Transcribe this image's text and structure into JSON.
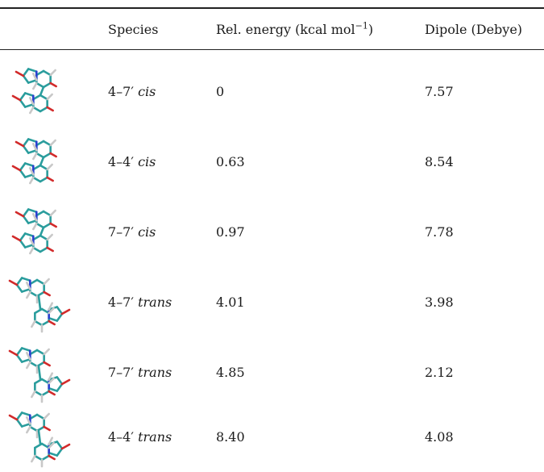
{
  "table": {
    "headers": {
      "species": "Species",
      "energy_prefix": "Rel. energy (kcal mol",
      "energy_exp": "−1",
      "energy_suffix": ")",
      "dipole": "Dipole (Debye)"
    },
    "rows": [
      {
        "species_linkage": "4–7′",
        "species_isomer": "cis",
        "energy": "0",
        "dipole": "7.57",
        "structure_icon": "molecule-4-7-cis"
      },
      {
        "species_linkage": "4–4′",
        "species_isomer": "cis",
        "energy": "0.63",
        "dipole": "8.54",
        "structure_icon": "molecule-4-4-cis"
      },
      {
        "species_linkage": "7–7′",
        "species_isomer": "cis",
        "energy": "0.97",
        "dipole": "7.78",
        "structure_icon": "molecule-7-7-cis"
      },
      {
        "species_linkage": "4–7′",
        "species_isomer": "trans",
        "energy": "4.01",
        "dipole": "3.98",
        "structure_icon": "molecule-4-7-trans"
      },
      {
        "species_linkage": "7–7′",
        "species_isomer": "trans",
        "energy": "4.85",
        "dipole": "2.12",
        "structure_icon": "molecule-7-7-trans"
      },
      {
        "species_linkage": "4–4′",
        "species_isomer": "trans",
        "energy": "8.40",
        "dipole": "4.08",
        "structure_icon": "molecule-4-4-trans"
      }
    ]
  },
  "colors": {
    "carbon": "#2a9d9d",
    "oxygen": "#d22a2a",
    "nitrogen": "#2b3fd0",
    "hydrogen": "#c8c8c8"
  }
}
